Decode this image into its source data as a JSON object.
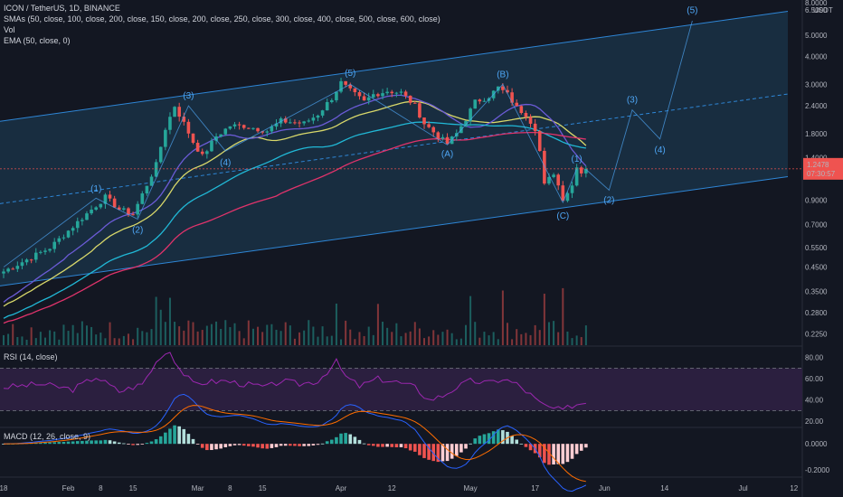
{
  "header": {
    "symbol_line": "ICON / TetherUS, 1D, BINANCE",
    "sma_line": "SMAs (50, close, 100, close, 200, close, 150, close, 200, close, 250, close, 300, close, 400, close, 500, close, 600, close)",
    "vol_line": "Vol",
    "ema_line": "EMA (50, close, 0)",
    "rsi_line": "RSI (14, close)",
    "macd_line": "MACD (12, 26, close, 9)"
  },
  "price_badge": {
    "value": "1.2478",
    "countdown": "07:30:57"
  },
  "colors": {
    "bull": "#26a69a",
    "bear": "#ef5350",
    "channel_fill": "#1e4a66",
    "channel_line": "#2e86d6",
    "wave": "#4ea6f5",
    "sma_yellow": "#d8d86a",
    "sma_purple": "#6b5bd6",
    "sma_cyan": "#21b8d6",
    "ema_pink": "#e0336b",
    "rsi": "#9c27b0",
    "rsi_band": "#2b1f3f",
    "macd": "#2962ff",
    "signal": "#ff6d00",
    "badge": "#ef5350",
    "bg": "#131722"
  },
  "chart_data": [
    {
      "type": "candlestick",
      "title": "ICON / TetherUS, 1D, BINANCE",
      "scale": "log",
      "ylim": [
        0.2,
        7.2
      ],
      "y_ticks": [
        "6.5000",
        "5.0000",
        "4.0000",
        "3.0000",
        "2.4000",
        "1.8000",
        "1.4000",
        "0.9000",
        "0.7000",
        "0.5500",
        "0.4500",
        "0.3500",
        "0.2800",
        "0.2250"
      ],
      "top_tick_partial": "8.0000",
      "unit": "USDT",
      "x_labels": [
        "18",
        "Feb",
        "8",
        "15",
        "Mar",
        "8",
        "15",
        "Apr",
        "12",
        "May",
        "17",
        "Jun",
        "14",
        "Jul",
        "12"
      ],
      "x_label_days": [
        0,
        14,
        21,
        28,
        42,
        49,
        56,
        73,
        84,
        101,
        115,
        130,
        143,
        160,
        171
      ],
      "anchor_closes": [
        [
          0,
          0.43
        ],
        [
          10,
          0.55
        ],
        [
          17,
          0.75
        ],
        [
          22,
          0.93
        ],
        [
          25,
          0.82
        ],
        [
          28,
          0.78
        ],
        [
          33,
          1.3
        ],
        [
          35,
          1.9
        ],
        [
          37,
          2.4
        ],
        [
          39,
          2.0
        ],
        [
          41,
          1.65
        ],
        [
          43,
          1.42
        ],
        [
          46,
          1.75
        ],
        [
          49,
          1.95
        ],
        [
          52,
          1.95
        ],
        [
          57,
          1.85
        ],
        [
          60,
          2.05
        ],
        [
          65,
          2.0
        ],
        [
          68,
          2.2
        ],
        [
          71,
          2.6
        ],
        [
          73,
          3.05
        ],
        [
          75,
          2.8
        ],
        [
          78,
          2.5
        ],
        [
          80,
          2.7
        ],
        [
          83,
          2.8
        ],
        [
          86,
          2.75
        ],
        [
          89,
          2.4
        ],
        [
          91,
          2.0
        ],
        [
          94,
          1.75
        ],
        [
          96,
          1.62
        ],
        [
          98,
          1.8
        ],
        [
          100,
          2.1
        ],
        [
          102,
          2.5
        ],
        [
          105,
          2.65
        ],
        [
          107,
          2.9
        ],
        [
          109,
          2.7
        ],
        [
          111,
          2.35
        ],
        [
          113,
          2.2
        ],
        [
          115,
          1.9
        ],
        [
          116,
          1.5
        ],
        [
          117,
          1.05
        ],
        [
          119,
          1.2
        ],
        [
          121,
          0.92
        ],
        [
          123,
          1.05
        ],
        [
          124,
          1.3
        ],
        [
          125,
          1.2
        ],
        [
          126,
          1.2478
        ]
      ],
      "volume_max": 1.0,
      "indicators": [
        "SMA 50",
        "SMA 100",
        "SMA 200",
        "EMA 50"
      ]
    },
    {
      "type": "line",
      "title": "RSI (14, close)",
      "ylim": [
        15,
        90
      ],
      "y_ticks": [
        "80.00",
        "60.00",
        "40.00",
        "20.00"
      ],
      "bands": [
        70,
        30
      ],
      "anchor_values": [
        [
          0,
          52
        ],
        [
          8,
          55
        ],
        [
          15,
          50
        ],
        [
          20,
          62
        ],
        [
          25,
          48
        ],
        [
          30,
          55
        ],
        [
          34,
          82
        ],
        [
          36,
          86
        ],
        [
          38,
          70
        ],
        [
          41,
          55
        ],
        [
          44,
          57
        ],
        [
          48,
          58
        ],
        [
          52,
          55
        ],
        [
          57,
          52
        ],
        [
          60,
          58
        ],
        [
          64,
          55
        ],
        [
          68,
          58
        ],
        [
          72,
          76
        ],
        [
          74,
          62
        ],
        [
          77,
          53
        ],
        [
          81,
          60
        ],
        [
          85,
          57
        ],
        [
          89,
          52
        ],
        [
          92,
          40
        ],
        [
          95,
          44
        ],
        [
          98,
          52
        ],
        [
          101,
          58
        ],
        [
          105,
          56
        ],
        [
          108,
          60
        ],
        [
          111,
          55
        ],
        [
          114,
          45
        ],
        [
          116,
          37
        ],
        [
          118,
          33
        ],
        [
          121,
          30
        ],
        [
          123,
          35
        ],
        [
          126,
          38
        ]
      ]
    },
    {
      "type": "bar",
      "title": "MACD (12, 26, close, 9)",
      "ylim": [
        -0.25,
        0.12
      ],
      "y_ticks": [
        "0.0000",
        "-0.2000"
      ],
      "series": [
        {
          "name": "MACD"
        },
        {
          "name": "Signal"
        },
        {
          "name": "Histogram"
        }
      ]
    }
  ]
}
